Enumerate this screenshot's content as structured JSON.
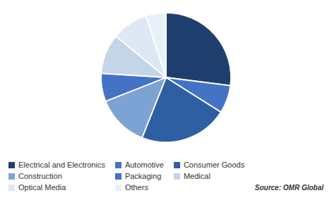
{
  "chart_data": {
    "type": "pie",
    "categories": [
      "Electrical and Electronics",
      "Automotive",
      "Consumer Goods",
      "Construction",
      "Packaging",
      "Medical",
      "Optical Media",
      "Others"
    ],
    "values": [
      27,
      7,
      22,
      13,
      7,
      10,
      9,
      5
    ],
    "colors": [
      "#1e3f6e",
      "#4472c4",
      "#2e5fa3",
      "#7ca3d4",
      "#4472c4",
      "#c5d5e8",
      "#dce8f5",
      "#e8f0f8"
    ],
    "annotations": [
      "Source: OMR Global"
    ],
    "legend": "bottom"
  }
}
